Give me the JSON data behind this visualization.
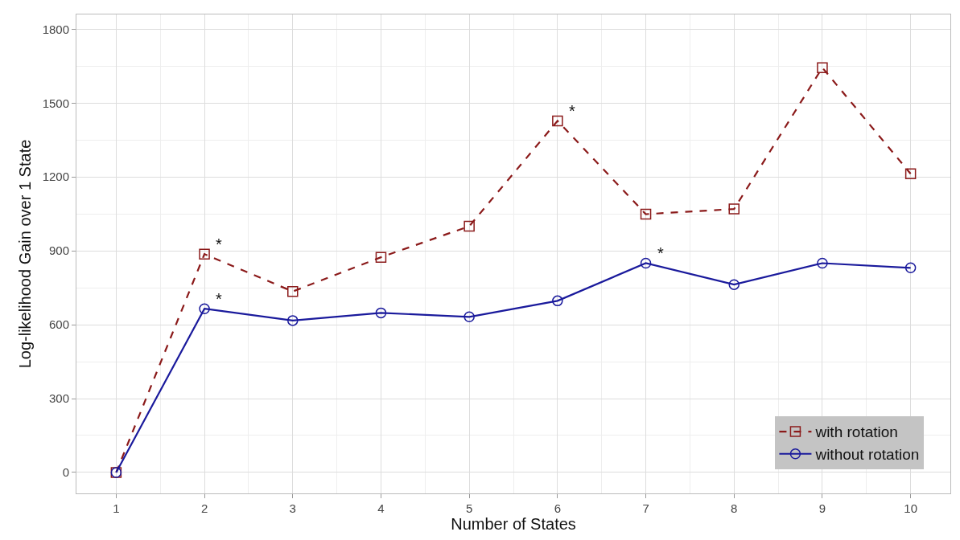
{
  "chart_data": {
    "type": "line",
    "xlabel": "Number of States",
    "ylabel": "Log-likelihood Gain over 1 State",
    "x": [
      1,
      2,
      3,
      4,
      5,
      6,
      7,
      8,
      9,
      10
    ],
    "series": [
      {
        "name": "with rotation",
        "color": "#8b1a1a",
        "marker": "square",
        "line_style": "dashed",
        "values": [
          0,
          887,
          735,
          874,
          1000,
          1428,
          1049,
          1070,
          1644,
          1213
        ]
      },
      {
        "name": "without rotation",
        "color": "#1a1a9c",
        "marker": "circle",
        "line_style": "solid",
        "values": [
          0,
          665,
          617,
          648,
          632,
          697,
          850,
          763,
          850,
          831
        ]
      }
    ],
    "annotations": [
      {
        "text": "*",
        "x": 2,
        "y": 887
      },
      {
        "text": "*",
        "x": 2,
        "y": 665
      },
      {
        "text": "*",
        "x": 6,
        "y": 1428
      },
      {
        "text": "*",
        "x": 7,
        "y": 850
      }
    ],
    "xlim": [
      0.55,
      10.45
    ],
    "xticks": [
      1,
      2,
      3,
      4,
      5,
      6,
      7,
      8,
      9,
      10
    ],
    "ylim": [
      -85,
      1860
    ],
    "yticks": [
      0,
      300,
      600,
      900,
      1200,
      1500,
      1800
    ],
    "grid": true,
    "legend": "bottom right"
  }
}
